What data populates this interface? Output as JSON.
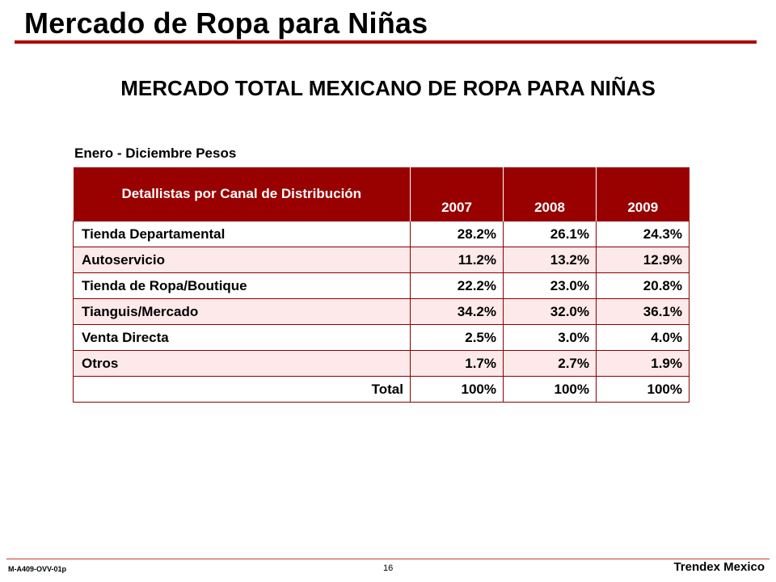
{
  "page": {
    "title": "Mercado de Ropa para Niñas",
    "heading": "MERCADO TOTAL MEXICANO DE ROPA PARA NIÑAS"
  },
  "table": {
    "caption": "Enero - Diciembre Pesos",
    "header_label": "Detallistas por Canal de Distribución",
    "years": [
      "2007",
      "2008",
      "2009"
    ],
    "rows": [
      {
        "label": "Tienda Departamental",
        "values": [
          "28.2%",
          "26.1%",
          "24.3%"
        ]
      },
      {
        "label": "Autoservicio",
        "values": [
          "11.2%",
          "13.2%",
          "12.9%"
        ]
      },
      {
        "label": "Tienda de Ropa/Boutique",
        "values": [
          "22.2%",
          "23.0%",
          "20.8%"
        ]
      },
      {
        "label": "Tianguis/Mercado",
        "values": [
          "34.2%",
          "32.0%",
          "36.1%"
        ]
      },
      {
        "label": "Venta Directa",
        "values": [
          "2.5%",
          "3.0%",
          "4.0%"
        ]
      },
      {
        "label": "Otros",
        "values": [
          "1.7%",
          "2.7%",
          "1.9%"
        ]
      }
    ],
    "total": {
      "label": "Total",
      "values": [
        "100%",
        "100%",
        "100%"
      ]
    }
  },
  "footer": {
    "code": "M-A409-OVV-01p",
    "page_number": "16",
    "brand": "Trendex Mexico"
  },
  "colors": {
    "accent": "#990000",
    "row_shade": "#fde9ea"
  }
}
